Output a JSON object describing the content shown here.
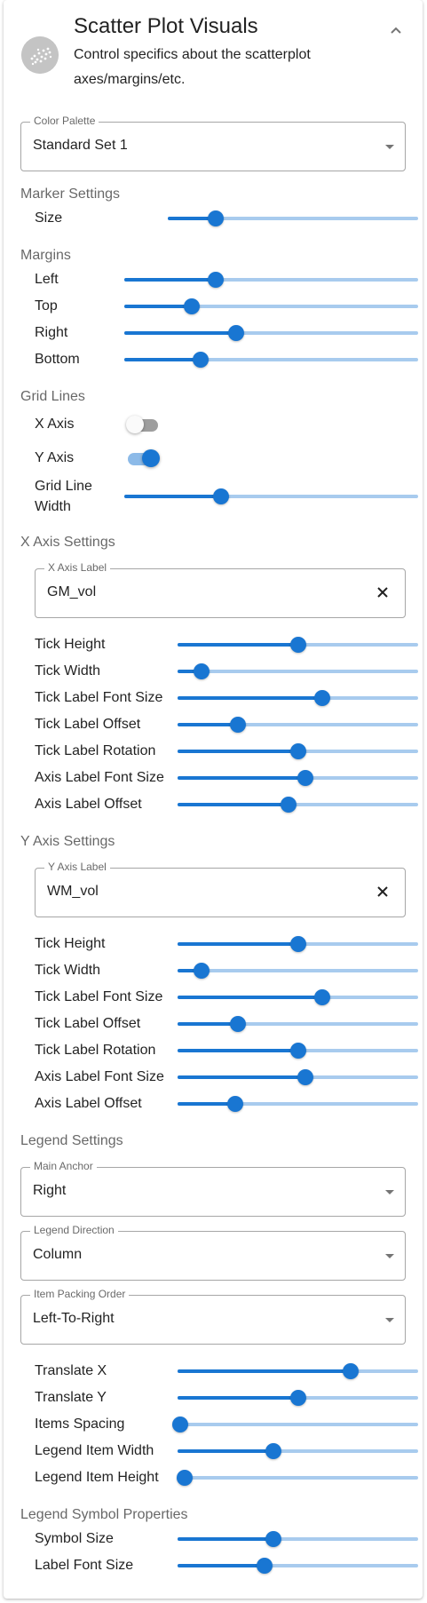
{
  "header": {
    "title": "Scatter Plot Visuals",
    "subtitle": "Control specifics about the scatterplot axes/margins/etc.",
    "collapse_icon": "chevron-up-icon",
    "avatar_icon": "scatter-thumbnail-icon"
  },
  "colors": {
    "accent": "#1976d2",
    "section_text": "#757575",
    "switch_off": "#9e9e9e"
  },
  "color_palette": {
    "label": "Color Palette",
    "value": "Standard Set 1"
  },
  "marker_settings": {
    "title": "Marker Settings",
    "size": {
      "label": "Size",
      "value": 0.19
    }
  },
  "margins": {
    "title": "Margins",
    "left": {
      "label": "Left",
      "value": 0.31
    },
    "top": {
      "label": "Top",
      "value": 0.23
    },
    "right": {
      "label": "Right",
      "value": 0.38
    },
    "bottom": {
      "label": "Bottom",
      "value": 0.26
    }
  },
  "grid_lines": {
    "title": "Grid Lines",
    "x_axis": {
      "label": "X Axis",
      "on": false
    },
    "y_axis": {
      "label": "Y Axis",
      "on": true
    },
    "width": {
      "label_line1": "Grid Line",
      "label_line2": "Width",
      "value": 0.33
    }
  },
  "x_axis": {
    "title": "X Axis Settings",
    "axis_label_field": {
      "label": "X Axis Label",
      "value": "GM_vol"
    },
    "tick_height": {
      "label": "Tick Height",
      "value": 0.5
    },
    "tick_width": {
      "label": "Tick Width",
      "value": 0.1
    },
    "tick_label_font_size": {
      "label": "Tick Label Font Size",
      "value": 0.6
    },
    "tick_label_offset": {
      "label": "Tick Label Offset",
      "value": 0.25
    },
    "tick_label_rotation": {
      "label": "Tick Label Rotation",
      "value": 0.5
    },
    "axis_label_font_size": {
      "label": "Axis Label Font Size",
      "value": 0.53
    },
    "axis_label_offset": {
      "label": "Axis Label Offset",
      "value": 0.46
    }
  },
  "y_axis": {
    "title": "Y Axis Settings",
    "axis_label_field": {
      "label": "Y Axis Label",
      "value": "WM_vol"
    },
    "tick_height": {
      "label": "Tick Height",
      "value": 0.5
    },
    "tick_width": {
      "label": "Tick Width",
      "value": 0.1
    },
    "tick_label_font_size": {
      "label": "Tick Label Font Size",
      "value": 0.6
    },
    "tick_label_offset": {
      "label": "Tick Label Offset",
      "value": 0.25
    },
    "tick_label_rotation": {
      "label": "Tick Label Rotation",
      "value": 0.5
    },
    "axis_label_font_size": {
      "label": "Axis Label Font Size",
      "value": 0.53
    },
    "axis_label_offset": {
      "label": "Axis Label Offset",
      "value": 0.24
    }
  },
  "legend": {
    "title": "Legend Settings",
    "main_anchor": {
      "label": "Main Anchor",
      "value": "Right"
    },
    "direction": {
      "label": "Legend Direction",
      "value": "Column"
    },
    "packing_order": {
      "label": "Item Packing Order",
      "value": "Left-To-Right"
    },
    "translate_x": {
      "label": "Translate X",
      "value": 0.72
    },
    "translate_y": {
      "label": "Translate Y",
      "value": 0.5
    },
    "items_spacing": {
      "label": "Items Spacing",
      "value": 0.01
    },
    "item_width": {
      "label": "Legend Item Width",
      "value": 0.4
    },
    "item_height": {
      "label": "Legend Item Height",
      "value": 0.03
    }
  },
  "legend_symbol": {
    "title": "Legend Symbol Properties",
    "symbol_size": {
      "label": "Symbol Size",
      "value": 0.4
    },
    "label_font_size": {
      "label": "Label Font Size",
      "value": 0.36
    }
  }
}
